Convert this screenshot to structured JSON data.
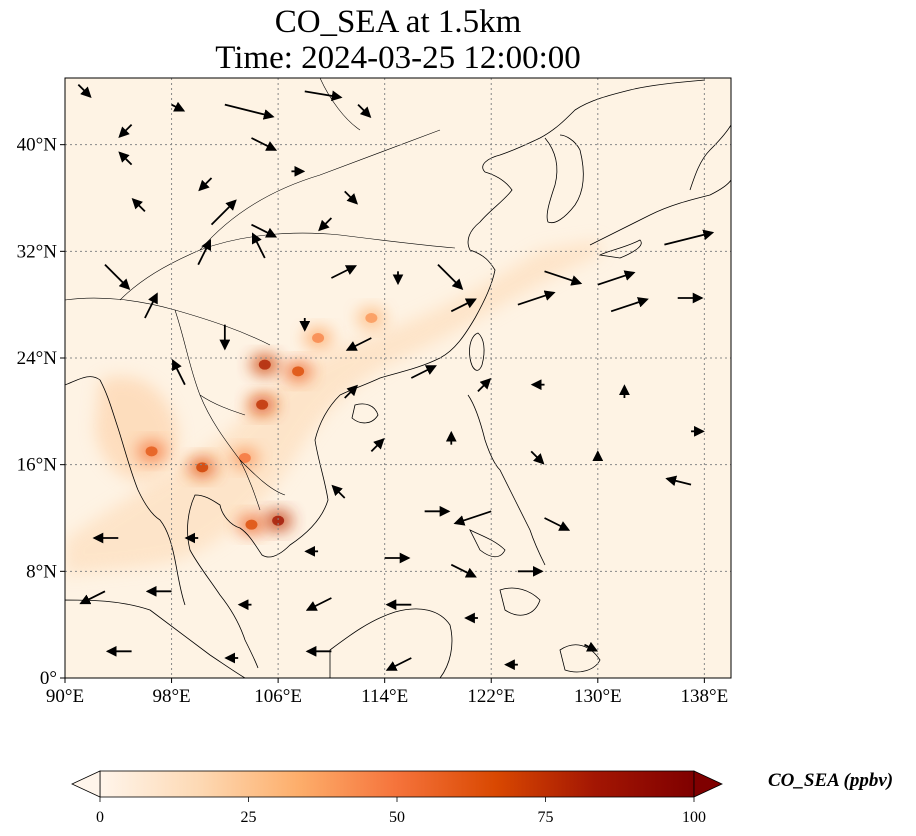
{
  "title": {
    "line1": "CO_SEA at 1.5km",
    "line2": "Time: 2024-03-25 12:00:00"
  },
  "axes": {
    "lat_ticks": [
      "0°",
      "8°N",
      "16°N",
      "24°N",
      "32°N",
      "40°N"
    ],
    "lon_ticks": [
      "90°E",
      "98°E",
      "106°E",
      "114°E",
      "122°E",
      "130°E",
      "138°E"
    ],
    "lon_range": [
      90,
      140
    ],
    "lat_range": [
      0,
      45
    ]
  },
  "colorbar": {
    "label": "CO_SEA (ppbv)",
    "ticks": [
      "0",
      "25",
      "50",
      "75",
      "100"
    ],
    "range": [
      0,
      100
    ],
    "colormap": [
      "#fff5eb",
      "#fdd9b4",
      "#fdae6b",
      "#f5733b",
      "#d94801",
      "#a31603",
      "#7f0000"
    ]
  },
  "map_colors": {
    "background": "#fef3e4",
    "coastline": "#000000",
    "gridline": "#888888"
  },
  "hotspots": [
    {
      "lon": 105.0,
      "lat": 23.5,
      "value": 70
    },
    {
      "lon": 107.5,
      "lat": 23.0,
      "value": 55
    },
    {
      "lon": 104.8,
      "lat": 20.5,
      "value": 65
    },
    {
      "lon": 100.3,
      "lat": 15.8,
      "value": 60
    },
    {
      "lon": 106.0,
      "lat": 11.8,
      "value": 75
    },
    {
      "lon": 104.0,
      "lat": 11.5,
      "value": 55
    },
    {
      "lon": 96.5,
      "lat": 17.0,
      "value": 50
    },
    {
      "lon": 103.5,
      "lat": 16.5,
      "value": 40
    },
    {
      "lon": 109.0,
      "lat": 25.5,
      "value": 35
    },
    {
      "lon": 113.0,
      "lat": 27.0,
      "value": 30
    }
  ],
  "wind_vectors": [
    {
      "lon": 91,
      "lat": 44.5,
      "u": 1,
      "v": -1
    },
    {
      "lon": 95,
      "lat": 41.5,
      "u": -1,
      "v": -1
    },
    {
      "lon": 98,
      "lat": 43,
      "u": 1,
      "v": -0.5
    },
    {
      "lon": 102,
      "lat": 43,
      "u": 4,
      "v": -1
    },
    {
      "lon": 104,
      "lat": 40.5,
      "u": 2,
      "v": -1
    },
    {
      "lon": 108,
      "lat": 44,
      "u": 3,
      "v": -0.5
    },
    {
      "lon": 112,
      "lat": 43,
      "u": 1,
      "v": -1
    },
    {
      "lon": 95,
      "lat": 38.5,
      "u": -1,
      "v": 1
    },
    {
      "lon": 101,
      "lat": 37.5,
      "u": -1,
      "v": -1
    },
    {
      "lon": 107,
      "lat": 38,
      "u": 1,
      "v": 0
    },
    {
      "lon": 111,
      "lat": 36.5,
      "u": 1,
      "v": -1
    },
    {
      "lon": 96,
      "lat": 35,
      "u": -1,
      "v": 1
    },
    {
      "lon": 101,
      "lat": 34,
      "u": 2,
      "v": 2
    },
    {
      "lon": 104,
      "lat": 34,
      "u": 2,
      "v": -1
    },
    {
      "lon": 110,
      "lat": 34.5,
      "u": -1,
      "v": -1
    },
    {
      "lon": 93,
      "lat": 31,
      "u": 2,
      "v": -2
    },
    {
      "lon": 100,
      "lat": 31,
      "u": 1,
      "v": 2
    },
    {
      "lon": 105,
      "lat": 31.5,
      "u": -1,
      "v": 2
    },
    {
      "lon": 110,
      "lat": 30,
      "u": 2,
      "v": 1
    },
    {
      "lon": 115,
      "lat": 30.5,
      "u": 0,
      "v": -1
    },
    {
      "lon": 118,
      "lat": 31,
      "u": 2,
      "v": -2
    },
    {
      "lon": 126,
      "lat": 30.5,
      "u": 3,
      "v": -1
    },
    {
      "lon": 130,
      "lat": 29.5,
      "u": 3,
      "v": 1
    },
    {
      "lon": 135,
      "lat": 32.5,
      "u": 4,
      "v": 1
    },
    {
      "lon": 96,
      "lat": 27,
      "u": 1,
      "v": 2
    },
    {
      "lon": 102,
      "lat": 26.5,
      "u": 0,
      "v": -2
    },
    {
      "lon": 108,
      "lat": 27,
      "u": 0,
      "v": -1
    },
    {
      "lon": 113,
      "lat": 25.5,
      "u": -2,
      "v": -1
    },
    {
      "lon": 119,
      "lat": 27.5,
      "u": 2,
      "v": 1
    },
    {
      "lon": 124,
      "lat": 28,
      "u": 3,
      "v": 1
    },
    {
      "lon": 131,
      "lat": 27.5,
      "u": 3,
      "v": 1
    },
    {
      "lon": 136,
      "lat": 28.5,
      "u": 2,
      "v": 0
    },
    {
      "lon": 99,
      "lat": 22,
      "u": -1,
      "v": 2
    },
    {
      "lon": 111,
      "lat": 21,
      "u": 1,
      "v": 1
    },
    {
      "lon": 116,
      "lat": 22.5,
      "u": 2,
      "v": 1
    },
    {
      "lon": 121,
      "lat": 21.5,
      "u": 1,
      "v": 1
    },
    {
      "lon": 126,
      "lat": 22,
      "u": -1,
      "v": 0
    },
    {
      "lon": 132,
      "lat": 21,
      "u": 0,
      "v": 1
    },
    {
      "lon": 137,
      "lat": 18.5,
      "u": 1,
      "v": 0
    },
    {
      "lon": 113,
      "lat": 17,
      "u": 1,
      "v": 1
    },
    {
      "lon": 119,
      "lat": 17.5,
      "u": 0,
      "v": 1
    },
    {
      "lon": 125,
      "lat": 17,
      "u": 1,
      "v": -1
    },
    {
      "lon": 130,
      "lat": 16.5,
      "u": 0,
      "v": 0.5
    },
    {
      "lon": 137,
      "lat": 14.5,
      "u": -2,
      "v": 0.5
    },
    {
      "lon": 111,
      "lat": 13.5,
      "u": -1,
      "v": 1
    },
    {
      "lon": 117,
      "lat": 12.5,
      "u": 2,
      "v": 0
    },
    {
      "lon": 122,
      "lat": 12.5,
      "u": -3,
      "v": -1
    },
    {
      "lon": 126,
      "lat": 12,
      "u": 2,
      "v": -1
    },
    {
      "lon": 94,
      "lat": 10.5,
      "u": -2,
      "v": 0
    },
    {
      "lon": 100,
      "lat": 10.5,
      "u": -1,
      "v": 0
    },
    {
      "lon": 109,
      "lat": 9.5,
      "u": -1,
      "v": 0
    },
    {
      "lon": 114,
      "lat": 9,
      "u": 2,
      "v": 0
    },
    {
      "lon": 119,
      "lat": 8.5,
      "u": 2,
      "v": -1
    },
    {
      "lon": 124,
      "lat": 8,
      "u": 2,
      "v": 0
    },
    {
      "lon": 93,
      "lat": 6.5,
      "u": -2,
      "v": -1
    },
    {
      "lon": 98,
      "lat": 6.5,
      "u": -2,
      "v": 0
    },
    {
      "lon": 104,
      "lat": 5.5,
      "u": -1,
      "v": 0
    },
    {
      "lon": 110,
      "lat": 6,
      "u": -2,
      "v": -1
    },
    {
      "lon": 116,
      "lat": 5.5,
      "u": -2,
      "v": 0
    },
    {
      "lon": 121,
      "lat": 4.5,
      "u": -1,
      "v": 0
    },
    {
      "lon": 129,
      "lat": 2.5,
      "u": 1,
      "v": -0.5
    },
    {
      "lon": 95,
      "lat": 2,
      "u": -2,
      "v": 0
    },
    {
      "lon": 103,
      "lat": 1.5,
      "u": -1,
      "v": 0
    },
    {
      "lon": 110,
      "lat": 2,
      "u": -2,
      "v": 0
    },
    {
      "lon": 116,
      "lat": 1.5,
      "u": -2,
      "v": -1
    },
    {
      "lon": 124,
      "lat": 1,
      "u": -1,
      "v": 0
    }
  ]
}
